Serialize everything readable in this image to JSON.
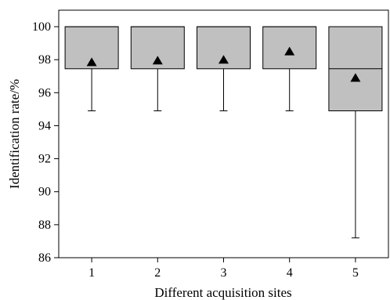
{
  "chart_data": {
    "type": "box",
    "title": "",
    "xlabel": "Different acquisition sites",
    "ylabel": "Identification rate/%",
    "ylim": [
      86,
      101
    ],
    "yticks": [
      86,
      88,
      90,
      92,
      94,
      96,
      98,
      100
    ],
    "categories": [
      "1",
      "2",
      "3",
      "4",
      "5"
    ],
    "boxes": [
      {
        "category": "1",
        "whisker_low": 94.9,
        "q1": 97.45,
        "median": 100,
        "q3": 100,
        "whisker_high": 100,
        "mean": 97.85
      },
      {
        "category": "2",
        "whisker_low": 94.9,
        "q1": 97.45,
        "median": 100,
        "q3": 100,
        "whisker_high": 100,
        "mean": 97.95
      },
      {
        "category": "3",
        "whisker_low": 94.9,
        "q1": 97.45,
        "median": 100,
        "q3": 100,
        "whisker_high": 100,
        "mean": 98.0
      },
      {
        "category": "4",
        "whisker_low": 94.9,
        "q1": 97.45,
        "median": 100,
        "q3": 100,
        "whisker_high": 100,
        "mean": 98.5
      },
      {
        "category": "5",
        "whisker_low": 87.2,
        "q1": 94.9,
        "median": 97.45,
        "q3": 100,
        "whisker_high": 100,
        "mean": 96.9
      }
    ],
    "colors": {
      "box_fill": "#c0c0c0",
      "stroke": "#000000",
      "mean_marker": "#000000"
    },
    "mean_marker": "triangle",
    "grid": false,
    "legend": "none"
  }
}
